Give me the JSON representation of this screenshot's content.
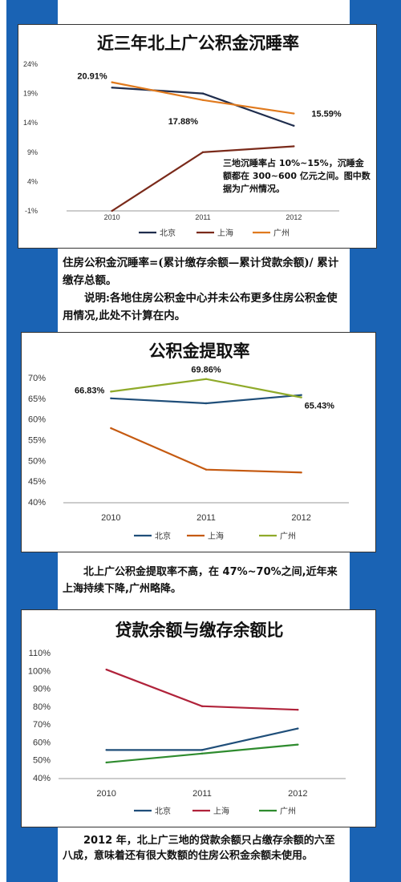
{
  "charts": [
    {
      "title": "近三年北上广公积金沉睡率",
      "note": "三地沉睡率占 10%~15%，沉睡金额都在 300~600 亿元之间。图中数据为广州情况。",
      "chart_data": {
        "type": "line",
        "title": "近三年北上广公积金沉睡率",
        "categories": [
          "2010",
          "2011",
          "2012"
        ],
        "y_ticks": [
          "24%",
          "19%",
          "14%",
          "9%",
          "4%",
          "-1%"
        ],
        "ylim": [
          -1,
          24
        ],
        "legend_position": "bottom",
        "series": [
          {
            "name": "北京",
            "color": "#1f2d4d",
            "values": [
              20.0,
              19.0,
              13.5
            ]
          },
          {
            "name": "上海",
            "color": "#7a2a1a",
            "values": [
              -1.0,
              9.0,
              10.0
            ]
          },
          {
            "name": "广州",
            "color": "#e07a1e",
            "values": [
              20.91,
              17.88,
              15.59
            ]
          }
        ],
        "data_labels": [
          {
            "text": "20.91%",
            "series": 2,
            "index": 0
          },
          {
            "text": "17.88%",
            "series": 2,
            "index": 1
          },
          {
            "text": "15.59%",
            "series": 2,
            "index": 2
          }
        ]
      }
    },
    {
      "title": "公积金提取率",
      "chart_data": {
        "type": "line",
        "title": "公积金提取率",
        "categories": [
          "2010",
          "2011",
          "2012"
        ],
        "y_ticks": [
          "70%",
          "65%",
          "60%",
          "55%",
          "50%",
          "45%",
          "40%"
        ],
        "ylim": [
          40,
          70
        ],
        "legend_position": "bottom",
        "series": [
          {
            "name": "北京",
            "color": "#1f4e79",
            "values": [
              65.2,
              64.0,
              66.0
            ]
          },
          {
            "name": "上海",
            "color": "#c55a11",
            "values": [
              58.0,
              48.0,
              47.3
            ]
          },
          {
            "name": "广州",
            "color": "#8faa2a",
            "values": [
              66.83,
              69.86,
              65.43
            ]
          }
        ],
        "data_labels": [
          {
            "text": "66.83%",
            "series": 2,
            "index": 0
          },
          {
            "text": "69.86%",
            "series": 2,
            "index": 1
          },
          {
            "text": "65.43%",
            "series": 2,
            "index": 2
          }
        ]
      }
    },
    {
      "title": "贷款余额与缴存余额比",
      "chart_data": {
        "type": "line",
        "title": "贷款余额与缴存余额比",
        "categories": [
          "2010",
          "2011",
          "2012"
        ],
        "y_ticks": [
          "110%",
          "100%",
          "90%",
          "80%",
          "70%",
          "60%",
          "50%",
          "40%"
        ],
        "ylim": [
          40,
          110
        ],
        "legend_position": "bottom",
        "series": [
          {
            "name": "北京",
            "color": "#1f4e79",
            "values": [
              56.0,
              56.0,
              68.0
            ]
          },
          {
            "name": "上海",
            "color": "#b0223a",
            "values": [
              101.0,
              80.5,
              78.5
            ]
          },
          {
            "name": "广州",
            "color": "#2e8b2e",
            "values": [
              49.0,
              54.0,
              59.0
            ]
          }
        ],
        "data_labels": []
      }
    }
  ],
  "texts": {
    "t1_p1": "住房公积金沉睡率=(累计缴存余额—累计贷款余额)/ 累计缴存总额。",
    "t1_p2": "说明:各地住房公积金中心并未公布更多住房公积金使用情况,此处不计算在内。",
    "t2": "北上广公积金提取率不高，在 47%~70%之间,近年来上海持续下降,广州略降。",
    "t3": "2012 年，北上广三地的贷款余额只占缴存余额的六至八成，意味着还有很大数额的住房公积金余额未使用。"
  }
}
